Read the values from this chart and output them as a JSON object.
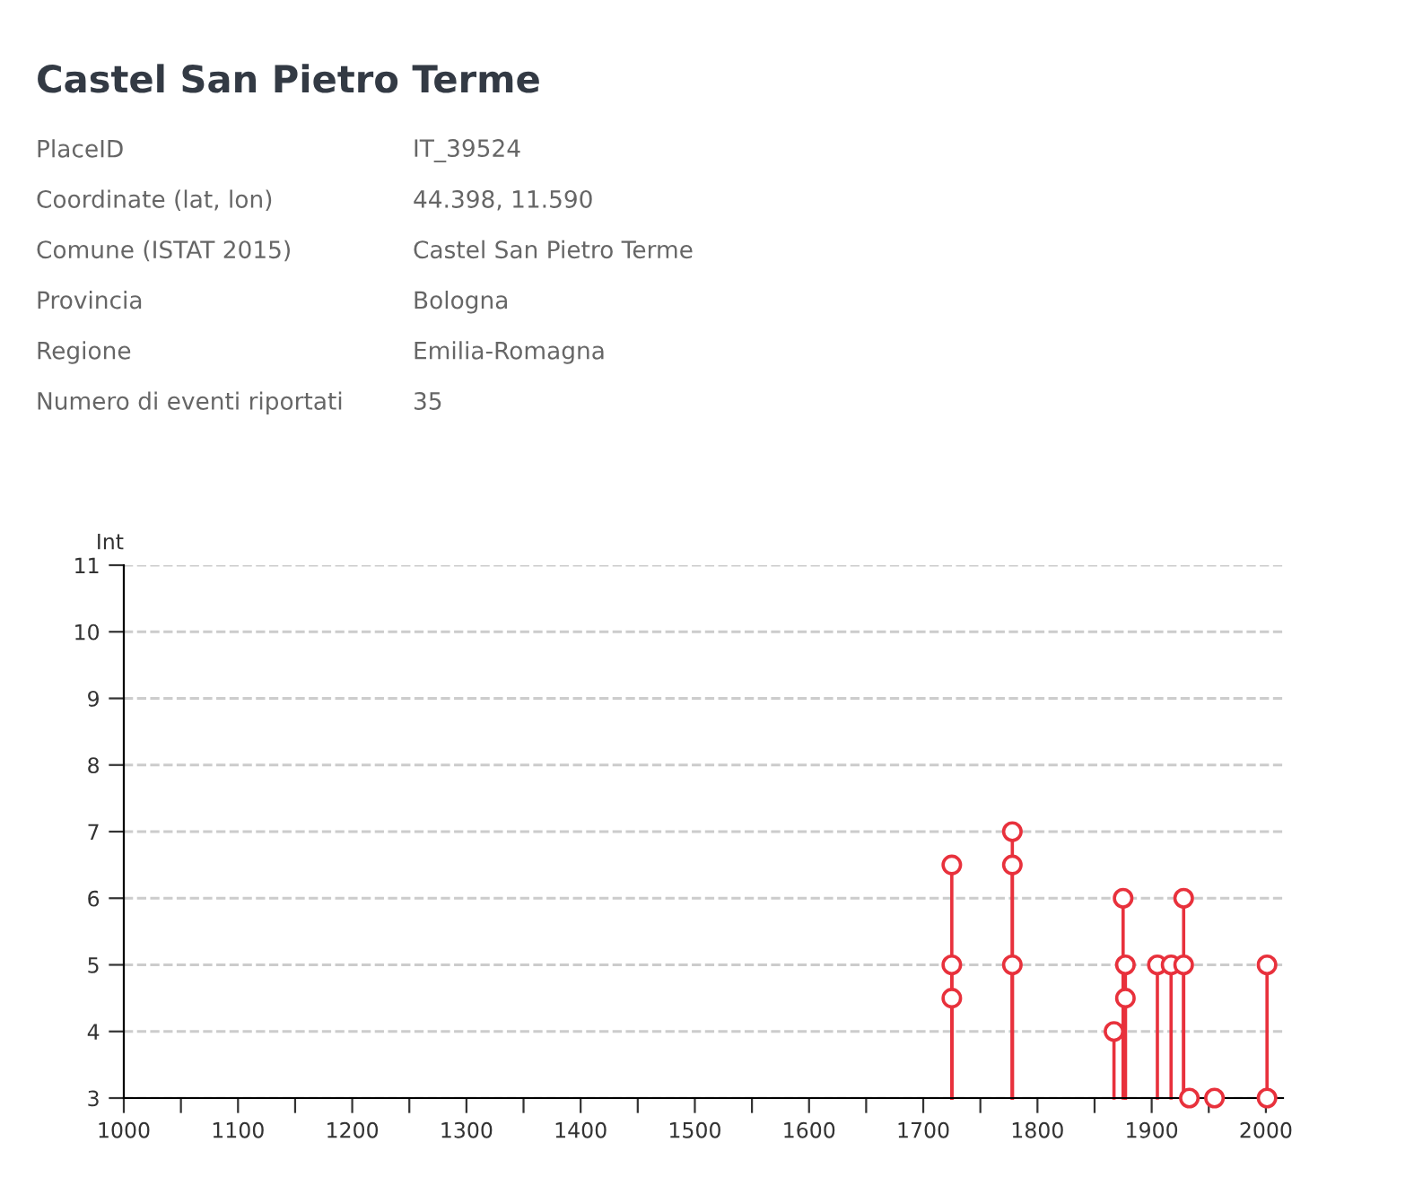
{
  "chart_data": [
    {
      "type": "other",
      "title": "Castel San Pietro Terme",
      "annotations": [
        "PlaceID",
        "IT_39524",
        "Coordinate (lat, lon)",
        "44.398, 11.590",
        "Comune (ISTAT 2015)",
        "Castel San Pietro Terme",
        "Provincia",
        "Bologna",
        "Regione",
        "Emilia-Romagna",
        "Numero di eventi riportati",
        "35"
      ]
    },
    {
      "type": "lollipop",
      "ylabel": "Int",
      "x": [
        1725,
        1725,
        1725,
        1778,
        1778,
        1778,
        1867,
        1875,
        1877,
        1877,
        1905,
        1917,
        1928,
        1928,
        1933,
        1955,
        2001,
        2001
      ],
      "values": [
        6.5,
        5,
        4.5,
        7,
        6.5,
        5,
        4,
        6,
        5,
        4.5,
        5,
        5,
        6,
        5,
        3,
        3,
        5,
        3
      ],
      "color": "#e8313c",
      "marker": "circle",
      "xlim": [
        1000,
        2015
      ],
      "ylim": [
        3,
        11
      ],
      "xticks": [
        1000,
        {
          "value": 1050,
          "label": null
        },
        1100,
        {
          "value": 1150,
          "label": null
        },
        1200,
        {
          "value": 1250,
          "label": null
        },
        1300,
        {
          "value": 1350,
          "label": null
        },
        1400,
        {
          "value": 1450,
          "label": null
        },
        1500,
        {
          "value": 1550,
          "label": null
        },
        1600,
        {
          "value": 1650,
          "label": null
        },
        1700,
        {
          "value": 1750,
          "label": null
        },
        1800,
        {
          "value": 1850,
          "label": null
        },
        1900,
        {
          "value": 1950,
          "label": null
        },
        2000
      ],
      "yticks": [
        3,
        4,
        5,
        6,
        7,
        8,
        9,
        10,
        11
      ],
      "grid": "y",
      "line_style": "dashed"
    }
  ]
}
